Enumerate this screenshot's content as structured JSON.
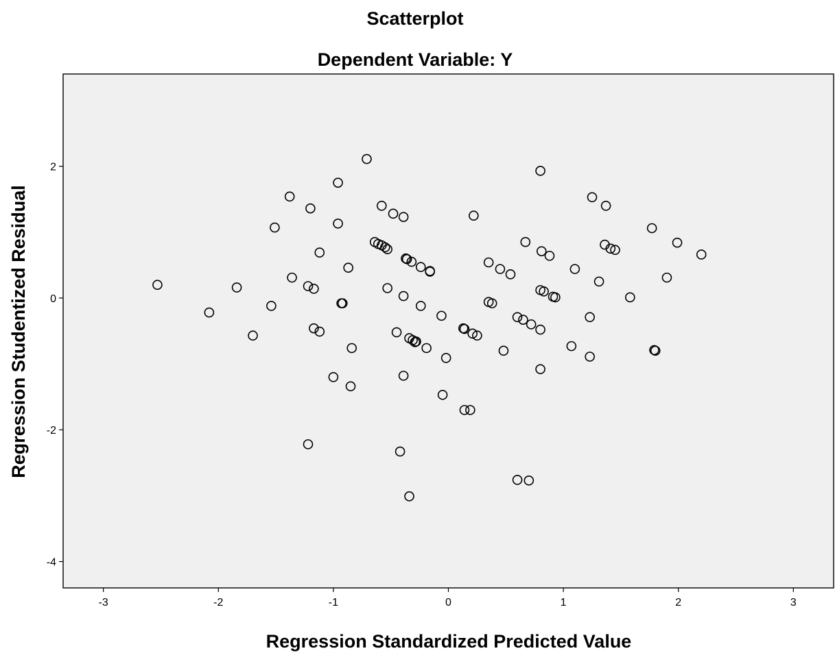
{
  "chart_data": {
    "type": "scatter",
    "title": "Scatterplot",
    "subtitle": "Dependent Variable: Y",
    "xlabel": "Regression Standardized Predicted Value",
    "ylabel": "Regression Studentized Residual",
    "xlim": [
      -3.35,
      3.35
    ],
    "ylim": [
      -4.4,
      3.4
    ],
    "xticks": [
      -3,
      -2,
      -1,
      0,
      1,
      2,
      3
    ],
    "yticks": [
      -4,
      -2,
      0,
      2
    ],
    "xtick_labels": [
      "-3",
      "-2",
      "-1",
      "0",
      "1",
      "2",
      "3"
    ],
    "ytick_labels": [
      "-4",
      "-2",
      "0",
      "2"
    ],
    "grid": false,
    "legend": "none",
    "colors": {
      "plot_background": "#f0f0f0",
      "marker_stroke": "#000000",
      "page_background": "#ffffff"
    },
    "marker": "open-circle",
    "points": [
      [
        -2.53,
        0.2
      ],
      [
        -2.08,
        -0.22
      ],
      [
        -1.84,
        0.16
      ],
      [
        -1.7,
        -0.57
      ],
      [
        -1.54,
        -0.12
      ],
      [
        -1.51,
        1.07
      ],
      [
        -1.38,
        1.54
      ],
      [
        -1.36,
        0.31
      ],
      [
        -1.22,
        0.18
      ],
      [
        -1.22,
        -2.22
      ],
      [
        -1.2,
        1.36
      ],
      [
        -1.17,
        0.14
      ],
      [
        -1.17,
        -0.46
      ],
      [
        -1.12,
        -0.51
      ],
      [
        -1.12,
        0.69
      ],
      [
        -1.0,
        -1.2
      ],
      [
        -0.96,
        1.75
      ],
      [
        -0.96,
        1.13
      ],
      [
        -0.93,
        -0.08
      ],
      [
        -0.92,
        -0.08
      ],
      [
        -0.87,
        0.46
      ],
      [
        -0.85,
        -1.34
      ],
      [
        -0.84,
        -0.76
      ],
      [
        -0.71,
        2.11
      ],
      [
        -0.64,
        0.85
      ],
      [
        -0.61,
        0.82
      ],
      [
        -0.58,
        0.8
      ],
      [
        -0.58,
        1.4
      ],
      [
        -0.55,
        0.77
      ],
      [
        -0.53,
        0.74
      ],
      [
        -0.53,
        0.15
      ],
      [
        -0.48,
        1.28
      ],
      [
        -0.45,
        -0.52
      ],
      [
        -0.39,
        1.23
      ],
      [
        -0.39,
        0.03
      ],
      [
        -0.39,
        -1.18
      ],
      [
        -0.37,
        0.6
      ],
      [
        -0.36,
        0.59
      ],
      [
        -0.34,
        -0.61
      ],
      [
        -0.34,
        -3.01
      ],
      [
        -0.32,
        0.55
      ],
      [
        -0.31,
        -0.64
      ],
      [
        -0.29,
        -0.67
      ],
      [
        -0.28,
        -0.66
      ],
      [
        -0.42,
        -2.33
      ],
      [
        -0.24,
        0.47
      ],
      [
        -0.24,
        -0.12
      ],
      [
        -0.19,
        -0.76
      ],
      [
        -0.16,
        0.41
      ],
      [
        -0.16,
        0.4
      ],
      [
        -0.06,
        -0.27
      ],
      [
        -0.05,
        -1.47
      ],
      [
        -0.02,
        -0.91
      ],
      [
        0.13,
        -0.46
      ],
      [
        0.14,
        -0.47
      ],
      [
        0.14,
        -1.7
      ],
      [
        0.19,
        -1.7
      ],
      [
        0.21,
        -0.54
      ],
      [
        0.22,
        1.25
      ],
      [
        0.25,
        -0.57
      ],
      [
        0.35,
        0.54
      ],
      [
        0.35,
        -0.06
      ],
      [
        0.38,
        -0.08
      ],
      [
        0.45,
        0.44
      ],
      [
        0.48,
        -0.8
      ],
      [
        0.54,
        0.36
      ],
      [
        0.6,
        -0.29
      ],
      [
        0.6,
        -2.76
      ],
      [
        0.65,
        -0.33
      ],
      [
        0.67,
        0.85
      ],
      [
        0.7,
        -2.77
      ],
      [
        0.72,
        -0.4
      ],
      [
        0.8,
        1.93
      ],
      [
        0.8,
        0.12
      ],
      [
        0.8,
        -0.48
      ],
      [
        0.8,
        -1.08
      ],
      [
        0.81,
        0.71
      ],
      [
        0.83,
        0.1
      ],
      [
        0.88,
        0.64
      ],
      [
        0.91,
        0.02
      ],
      [
        0.93,
        0.01
      ],
      [
        1.07,
        -0.73
      ],
      [
        1.1,
        0.44
      ],
      [
        1.23,
        -0.29
      ],
      [
        1.23,
        -0.89
      ],
      [
        1.25,
        1.53
      ],
      [
        1.31,
        0.25
      ],
      [
        1.36,
        0.81
      ],
      [
        1.37,
        1.4
      ],
      [
        1.41,
        0.75
      ],
      [
        1.45,
        0.73
      ],
      [
        1.58,
        0.01
      ],
      [
        1.77,
        1.06
      ],
      [
        1.79,
        -0.79
      ],
      [
        1.8,
        -0.8
      ],
      [
        1.9,
        0.31
      ],
      [
        1.99,
        0.84
      ],
      [
        2.2,
        0.66
      ]
    ]
  }
}
